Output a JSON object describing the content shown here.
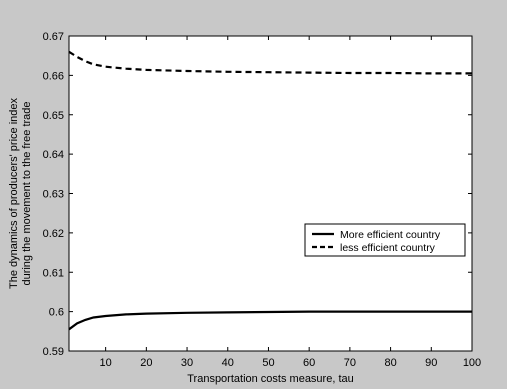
{
  "chart_data": {
    "type": "line",
    "title": "",
    "xlabel": "Transportation costs measure, tau",
    "ylabel_lines": [
      "The dynamics of producers' price index",
      "during the movement to the free trade"
    ],
    "xlim": [
      1,
      100
    ],
    "ylim": [
      0.59,
      0.67
    ],
    "x_ticks": [
      10,
      20,
      30,
      40,
      50,
      60,
      70,
      80,
      90,
      100
    ],
    "y_ticks": [
      0.59,
      0.6,
      0.61,
      0.62,
      0.63,
      0.64,
      0.65,
      0.66,
      0.67
    ],
    "x_tick_labels": [
      "10",
      "20",
      "30",
      "40",
      "50",
      "60",
      "70",
      "80",
      "90",
      "100"
    ],
    "y_tick_labels": [
      "0.59",
      "0.6",
      "0.61",
      "0.62",
      "0.63",
      "0.64",
      "0.65",
      "0.66",
      "0.67"
    ],
    "grid": false,
    "legend_position": "center-right",
    "series": [
      {
        "name": "More efficient country",
        "style": "solid",
        "color": "#000000",
        "x": [
          1,
          3,
          5,
          7,
          10,
          15,
          20,
          30,
          40,
          50,
          60,
          70,
          80,
          90,
          100
        ],
        "y": [
          0.5955,
          0.597,
          0.5979,
          0.5985,
          0.5989,
          0.5993,
          0.5995,
          0.5997,
          0.5998,
          0.5999,
          0.6,
          0.6,
          0.6,
          0.6,
          0.6
        ]
      },
      {
        "name": "less efficient country",
        "style": "dashed",
        "color": "#000000",
        "x": [
          1,
          3,
          5,
          7,
          10,
          15,
          20,
          30,
          40,
          50,
          60,
          70,
          80,
          90,
          100
        ],
        "y": [
          0.666,
          0.6647,
          0.6636,
          0.6628,
          0.6622,
          0.6617,
          0.6614,
          0.6611,
          0.6609,
          0.6608,
          0.6607,
          0.6606,
          0.6606,
          0.6605,
          0.6605
        ]
      }
    ]
  }
}
